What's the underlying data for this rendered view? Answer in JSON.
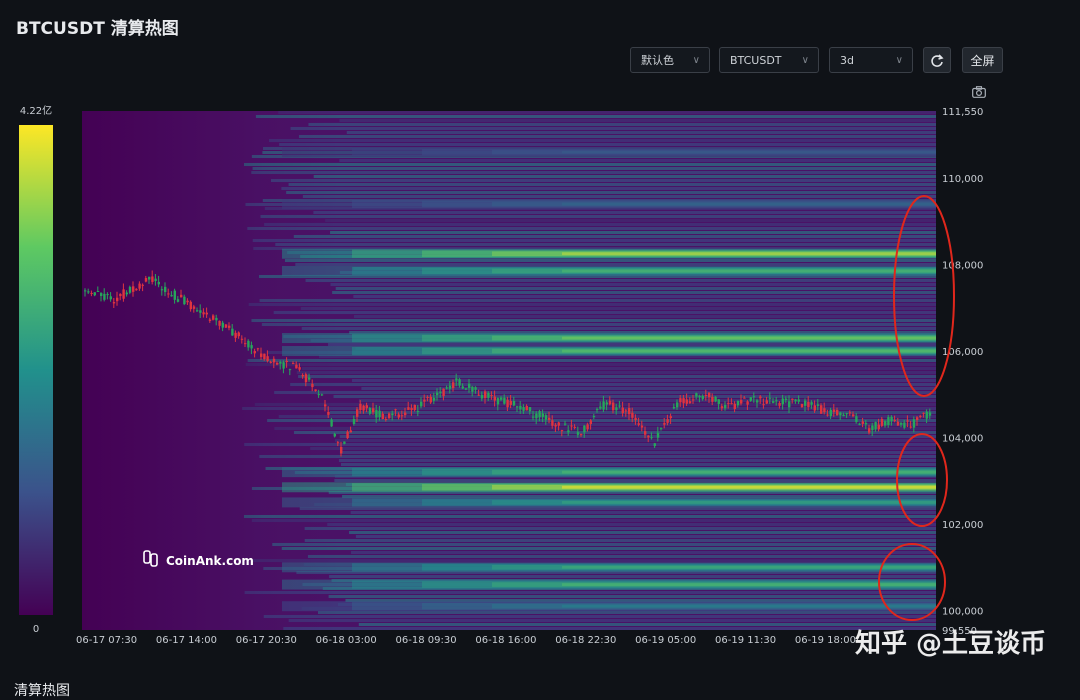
{
  "header": {
    "title": "BTCUSDT 清算热图"
  },
  "toolbar": {
    "color_select": "默认色",
    "symbol_select": "BTCUSDT",
    "range_select": "3d",
    "refresh_icon": "refresh-icon",
    "fullscreen_label": "全屏",
    "camera_icon": "camera-icon"
  },
  "colorbar": {
    "max_label": "4.22亿",
    "min_label": "0"
  },
  "watermark": {
    "text": "CoinAnk.com",
    "overlay_text": "知乎 @土豆谈币"
  },
  "footer": {
    "partial_title": "清算热图"
  },
  "chart_data": {
    "type": "heatmap",
    "title": "BTCUSDT 清算热图",
    "x_ticks": [
      "06-17 07:30",
      "06-17 14:00",
      "06-17 20:30",
      "06-18 03:00",
      "06-18 09:30",
      "06-18 16:00",
      "06-18 22:30",
      "06-19 05:00",
      "06-19 11:30",
      "06-19 18:00"
    ],
    "y_ticks": [
      "111,550",
      "110,000",
      "108,000",
      "106,000",
      "104,000",
      "102,000",
      "100,000",
      "99,550"
    ],
    "ylim": [
      99550,
      111550
    ],
    "colorscale": {
      "min": "0",
      "max": "4.22亿",
      "colors": [
        "#440154",
        "#3b528b",
        "#21918c",
        "#5ec962",
        "#fde725"
      ]
    },
    "heat_bands": [
      {
        "price": 108250,
        "intensity": 0.92
      },
      {
        "price": 107850,
        "intensity": 0.7
      },
      {
        "price": 106300,
        "intensity": 0.8
      },
      {
        "price": 106000,
        "intensity": 0.75
      },
      {
        "price": 103200,
        "intensity": 0.7
      },
      {
        "price": 102850,
        "intensity": 1.0
      },
      {
        "price": 102500,
        "intensity": 0.6
      },
      {
        "price": 101000,
        "intensity": 0.65
      },
      {
        "price": 100600,
        "intensity": 0.7
      },
      {
        "price": 100100,
        "intensity": 0.45
      },
      {
        "price": 109400,
        "intensity": 0.35
      },
      {
        "price": 110600,
        "intensity": 0.3
      }
    ],
    "price_series": {
      "name": "BTCUSDT",
      "x": [
        "06-17 05:30",
        "06-17 08:00",
        "06-17 11:00",
        "06-17 14:00",
        "06-17 17:00",
        "06-17 20:30",
        "06-17 23:00",
        "06-18 01:00",
        "06-18 02:30",
        "06-18 04:00",
        "06-18 06:00",
        "06-18 08:00",
        "06-18 10:00",
        "06-18 12:00",
        "06-18 14:00",
        "06-18 16:00",
        "06-18 18:00",
        "06-18 20:00",
        "06-18 22:00",
        "06-19 00:00",
        "06-19 02:00",
        "06-19 04:00",
        "06-19 06:00",
        "06-19 08:00",
        "06-19 10:00",
        "06-19 12:00",
        "06-19 14:00",
        "06-19 16:00",
        "06-19 18:00",
        "06-19 20:00",
        "06-19 21:30",
        "06-19 23:00",
        "06-20 01:00",
        "06-20 03:00"
      ],
      "y": [
        107500,
        107200,
        107650,
        107100,
        106600,
        105800,
        105600,
        104900,
        103700,
        104700,
        104500,
        104600,
        104900,
        105300,
        105000,
        104800,
        104600,
        104300,
        104100,
        104800,
        104600,
        103900,
        104800,
        105000,
        104700,
        104900,
        104800,
        104800,
        104600,
        104500,
        104200,
        104400,
        104300,
        104700
      ]
    }
  }
}
